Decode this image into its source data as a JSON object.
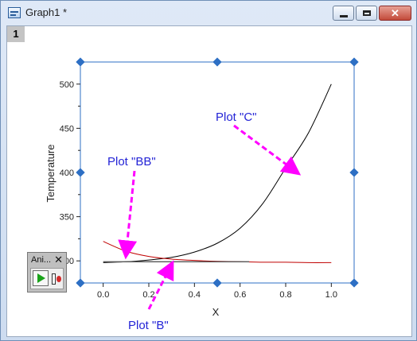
{
  "window": {
    "title": "Graph1 *",
    "layer_badge": "1",
    "controls": {
      "minimize_icon": "minimize-icon",
      "maximize_icon": "maximize-icon",
      "close_glyph": "✕"
    }
  },
  "chart_data": {
    "type": "line",
    "xlabel": "X",
    "ylabel": "Temperature",
    "xlim": [
      -0.1,
      1.1
    ],
    "ylim": [
      275,
      525
    ],
    "x_ticks": [
      "0.0",
      "0.2",
      "0.4",
      "0.6",
      "0.8",
      "1.0"
    ],
    "y_ticks": [
      "300",
      "350",
      "400",
      "450",
      "500"
    ],
    "series": [
      {
        "color": "#000000",
        "x": [
          0.0,
          0.1,
          0.2,
          0.3,
          0.4,
          0.5,
          0.6,
          0.7,
          0.8,
          0.9,
          1.0
        ],
        "values": [
          298,
          299,
          301,
          304,
          310,
          320,
          337,
          365,
          405,
          445,
          500
        ]
      },
      {
        "color": "#c00000",
        "x": [
          0.0,
          0.1,
          0.2,
          0.3,
          0.4,
          0.5,
          0.6,
          0.7,
          0.8,
          0.9,
          1.0
        ],
        "values": [
          322,
          311,
          305,
          302,
          300.5,
          299.5,
          299,
          298.5,
          298.5,
          298,
          298
        ]
      },
      {
        "color": "#555555",
        "x": [
          0.0,
          0.2,
          0.4,
          0.6,
          0.64
        ],
        "values": [
          299,
          299,
          299,
          299,
          299
        ]
      }
    ],
    "annotations": [
      {
        "text": "Plot \"C\"",
        "arrow_to": [
          0.85,
          400
        ]
      },
      {
        "text": "Plot \"BB\"",
        "arrow_to": [
          0.1,
          307
        ]
      },
      {
        "text": "Plot \"B\"",
        "arrow_to": [
          0.3,
          296
        ]
      }
    ],
    "grid": false
  },
  "animation_panel": {
    "title": "Ani...",
    "close_glyph": "✕",
    "play_icon": "play-icon",
    "record_icon": "record-icon"
  }
}
